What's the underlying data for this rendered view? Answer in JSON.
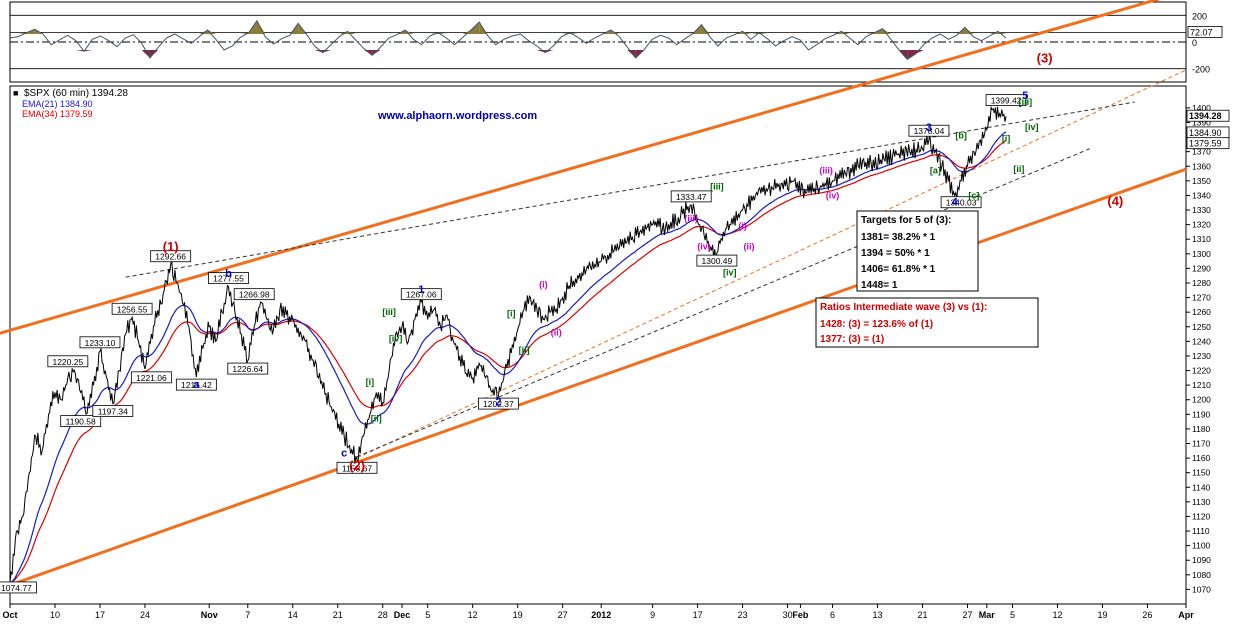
{
  "chart_data": [
    {
      "panel": "oscillator",
      "type": "area",
      "ylim": [
        -300,
        300
      ],
      "y_ticks": [
        200,
        0,
        -200
      ],
      "y_tick_labels": [
        "200",
        "0",
        "-200"
      ],
      "reference_lines": [
        72.07
      ],
      "value_label": "72.07",
      "shape_points": [
        30,
        40,
        70,
        95,
        60,
        -20,
        15,
        50,
        10,
        -70,
        20,
        45,
        10,
        -35,
        30,
        55,
        -10,
        -120,
        -40,
        30,
        60,
        25,
        -10,
        40,
        90,
        20,
        -60,
        -30,
        35,
        70,
        160,
        40,
        -15,
        25,
        50,
        140,
        60,
        -30,
        -80,
        -20,
        40,
        80,
        15,
        -50,
        -100,
        -40,
        30,
        55,
        90,
        20,
        -20,
        45,
        70,
        30,
        -20,
        35,
        90,
        150,
        50,
        -20,
        20,
        45,
        60,
        10,
        -30,
        -80,
        -30,
        40,
        70,
        35,
        -10,
        30,
        60,
        90,
        40,
        -40,
        -120,
        -60,
        20,
        50,
        30,
        -20,
        25,
        65,
        130,
        40,
        -30,
        30,
        55,
        80,
        20,
        70,
        25,
        -30,
        10,
        40,
        15,
        -60,
        -20,
        25,
        50,
        80,
        30,
        -20,
        40,
        70,
        100,
        20,
        -60,
        -130,
        -90,
        -20,
        30,
        60,
        20,
        50,
        110,
        40,
        10,
        45,
        80,
        30
      ]
    },
    {
      "panel": "price",
      "type": "line",
      "title": "$SPX (60 min) 1394.28",
      "watermark": "www.alphaorn.wordpress.com",
      "legend": [
        {
          "label": "EMA(21) 1384.90",
          "color": "#1a1acc"
        },
        {
          "label": "EMA(34) 1379.59",
          "color": "#e00000"
        }
      ],
      "ylim": [
        1060,
        1415
      ],
      "y_ticks": [
        1070,
        1080,
        1090,
        1100,
        1110,
        1120,
        1130,
        1140,
        1150,
        1160,
        1170,
        1180,
        1190,
        1200,
        1210,
        1220,
        1230,
        1240,
        1250,
        1260,
        1270,
        1280,
        1290,
        1300,
        1310,
        1320,
        1330,
        1340,
        1350,
        1360,
        1370,
        1380,
        1390,
        1400
      ],
      "last_price_labels": [
        "1394.28",
        "1384.90",
        "1379.59"
      ],
      "x_range_days": [
        0,
        183
      ],
      "x_ticks": [
        {
          "day": 0,
          "label": "Oct"
        },
        {
          "day": 7,
          "label": "10"
        },
        {
          "day": 14,
          "label": "17"
        },
        {
          "day": 21,
          "label": "24"
        },
        {
          "day": 31,
          "label": "Nov"
        },
        {
          "day": 37,
          "label": "7"
        },
        {
          "day": 44,
          "label": "14"
        },
        {
          "day": 51,
          "label": "21"
        },
        {
          "day": 58,
          "label": "28"
        },
        {
          "day": 61,
          "label": "Dec"
        },
        {
          "day": 65,
          "label": "5"
        },
        {
          "day": 72,
          "label": "12"
        },
        {
          "day": 79,
          "label": "19"
        },
        {
          "day": 86,
          "label": "27"
        },
        {
          "day": 92,
          "label": "2012"
        },
        {
          "day": 100,
          "label": "9"
        },
        {
          "day": 107,
          "label": "17"
        },
        {
          "day": 114,
          "label": "23"
        },
        {
          "day": 121,
          "label": "30"
        },
        {
          "day": 123,
          "label": "Feb"
        },
        {
          "day": 128,
          "label": "6"
        },
        {
          "day": 135,
          "label": "13"
        },
        {
          "day": 142,
          "label": "21"
        },
        {
          "day": 149,
          "label": "27"
        },
        {
          "day": 152,
          "label": "Mar"
        },
        {
          "day": 156,
          "label": "5"
        },
        {
          "day": 163,
          "label": "12"
        },
        {
          "day": 170,
          "label": "19"
        },
        {
          "day": 177,
          "label": "26"
        },
        {
          "day": 183,
          "label": "Apr"
        }
      ],
      "price_path": [
        [
          0,
          1074.77
        ],
        [
          1,
          1110
        ],
        [
          2,
          1120
        ],
        [
          3,
          1150
        ],
        [
          4,
          1175
        ],
        [
          5,
          1165
        ],
        [
          6,
          1190
        ],
        [
          7,
          1205
        ],
        [
          8,
          1200
        ],
        [
          9,
          1215
        ],
        [
          10,
          1220.25
        ],
        [
          11,
          1205
        ],
        [
          12,
          1190.58
        ],
        [
          13,
          1210
        ],
        [
          14,
          1233.1
        ],
        [
          15,
          1215
        ],
        [
          16,
          1197.34
        ],
        [
          17,
          1220
        ],
        [
          18,
          1245
        ],
        [
          19,
          1256.55
        ],
        [
          20,
          1240
        ],
        [
          21,
          1221.06
        ],
        [
          22,
          1245
        ],
        [
          24,
          1275
        ],
        [
          25,
          1292.66
        ],
        [
          26,
          1280
        ],
        [
          27,
          1265
        ],
        [
          28,
          1245
        ],
        [
          29,
          1215.42
        ],
        [
          30,
          1235
        ],
        [
          31,
          1250
        ],
        [
          32,
          1240
        ],
        [
          33,
          1260
        ],
        [
          34,
          1277.55
        ],
        [
          35,
          1260
        ],
        [
          36,
          1245
        ],
        [
          37,
          1226.64
        ],
        [
          38,
          1250
        ],
        [
          39,
          1266.98
        ],
        [
          40,
          1255
        ],
        [
          41,
          1248
        ],
        [
          42,
          1262
        ],
        [
          43,
          1258
        ],
        [
          44,
          1255
        ],
        [
          46,
          1240
        ],
        [
          48,
          1215
        ],
        [
          50,
          1195
        ],
        [
          52,
          1175
        ],
        [
          54,
          1158.67
        ],
        [
          55,
          1175
        ],
        [
          56,
          1190
        ],
        [
          57,
          1205
        ],
        [
          58,
          1198
        ],
        [
          59,
          1220
        ],
        [
          60,
          1245
        ],
        [
          61,
          1250
        ],
        [
          62,
          1240
        ],
        [
          63,
          1255
        ],
        [
          64,
          1267.06
        ],
        [
          65,
          1255
        ],
        [
          66,
          1262
        ],
        [
          67,
          1250
        ],
        [
          68,
          1258
        ],
        [
          69,
          1240
        ],
        [
          70,
          1230
        ],
        [
          71,
          1218
        ],
        [
          72,
          1215
        ],
        [
          73,
          1225
        ],
        [
          74,
          1215
        ],
        [
          75,
          1205
        ],
        [
          76,
          1202.37
        ],
        [
          77,
          1220
        ],
        [
          78,
          1232
        ],
        [
          79,
          1248
        ],
        [
          80,
          1262
        ],
        [
          81,
          1270
        ],
        [
          82,
          1262
        ],
        [
          83,
          1255
        ],
        [
          84,
          1260
        ],
        [
          85,
          1262
        ],
        [
          86,
          1270
        ],
        [
          87,
          1278
        ],
        [
          88,
          1283
        ],
        [
          90,
          1290
        ],
        [
          92,
          1295
        ],
        [
          94,
          1302
        ],
        [
          96,
          1308
        ],
        [
          98,
          1315
        ],
        [
          100,
          1320
        ],
        [
          102,
          1318
        ],
        [
          104,
          1325
        ],
        [
          106,
          1333.47
        ],
        [
          107,
          1322
        ],
        [
          108,
          1313
        ],
        [
          109,
          1305
        ],
        [
          110,
          1300.49
        ],
        [
          111,
          1315
        ],
        [
          112,
          1320
        ],
        [
          114,
          1330
        ],
        [
          116,
          1340
        ],
        [
          118,
          1345
        ],
        [
          120,
          1348
        ],
        [
          122,
          1350
        ],
        [
          124,
          1342
        ],
        [
          126,
          1345
        ],
        [
          128,
          1350
        ],
        [
          130,
          1355
        ],
        [
          132,
          1360
        ],
        [
          134,
          1362
        ],
        [
          136,
          1365
        ],
        [
          138,
          1368
        ],
        [
          140,
          1370
        ],
        [
          142,
          1372
        ],
        [
          143,
          1378.04
        ],
        [
          144,
          1370
        ],
        [
          145,
          1360
        ],
        [
          146,
          1350
        ],
        [
          147,
          1340.03
        ],
        [
          148,
          1350
        ],
        [
          149,
          1360
        ],
        [
          150,
          1370
        ],
        [
          151,
          1378
        ],
        [
          152,
          1385
        ],
        [
          153,
          1399.42
        ],
        [
          154,
          1396
        ],
        [
          155,
          1394.28
        ]
      ]
    }
  ],
  "markers": [
    {
      "text": "(1)",
      "day": 25,
      "price": 1302,
      "color": "#cc0000"
    },
    {
      "text": "(2)",
      "day": 54,
      "price": 1152,
      "color": "#cc0000"
    },
    {
      "text": "(3)",
      "day": 161,
      "price": 1431,
      "color": "#cc0000"
    },
    {
      "text": "(4)",
      "day": 172,
      "price": 1333,
      "color": "#cc0000"
    },
    {
      "text": "a",
      "day": 29,
      "price": 1208,
      "color": "#0000cc"
    },
    {
      "text": "b",
      "day": 34,
      "price": 1284,
      "color": "#0000cc"
    },
    {
      "text": "c",
      "day": 52,
      "price": 1161,
      "color": "#0000cc"
    },
    {
      "text": "1",
      "day": 64,
      "price": 1273,
      "color": "#0000cc"
    },
    {
      "text": "2",
      "day": 76,
      "price": 1196,
      "color": "#0000cc"
    },
    {
      "text": "3",
      "day": 143,
      "price": 1384,
      "color": "#0000cc"
    },
    {
      "text": "4",
      "day": 147,
      "price": 1333,
      "color": "#0000cc"
    },
    {
      "text": "5",
      "day": 158,
      "price": 1406,
      "color": "#0000cc"
    },
    {
      "text": "[i]",
      "day": 56,
      "price": 1210,
      "color": "#006600"
    },
    {
      "text": "[ii]",
      "day": 57,
      "price": 1185,
      "color": "#006600"
    },
    {
      "text": "[iii]",
      "day": 59,
      "price": 1258,
      "color": "#006600"
    },
    {
      "text": "[iv]",
      "day": 60,
      "price": 1240,
      "color": "#006600"
    },
    {
      "text": "[i]",
      "day": 78,
      "price": 1257,
      "color": "#006600"
    },
    {
      "text": "[ii]",
      "day": 80,
      "price": 1232,
      "color": "#006600"
    },
    {
      "text": "(i)",
      "day": 83,
      "price": 1277,
      "color": "#cc00cc"
    },
    {
      "text": "(ii)",
      "day": 85,
      "price": 1244,
      "color": "#cc00cc"
    },
    {
      "text": "(iii)",
      "day": 106,
      "price": 1322,
      "color": "#cc00cc"
    },
    {
      "text": "(iv)",
      "day": 108,
      "price": 1303,
      "color": "#cc00cc"
    },
    {
      "text": "[iii]",
      "day": 110,
      "price": 1344,
      "color": "#006600"
    },
    {
      "text": "[iv]",
      "day": 112,
      "price": 1285,
      "color": "#006600"
    },
    {
      "text": "(i)",
      "day": 114,
      "price": 1317,
      "color": "#cc00cc"
    },
    {
      "text": "(ii)",
      "day": 115,
      "price": 1303,
      "color": "#cc00cc"
    },
    {
      "text": "(iii)",
      "day": 127,
      "price": 1355,
      "color": "#cc00cc"
    },
    {
      "text": "(iv)",
      "day": 128,
      "price": 1338,
      "color": "#cc00cc"
    },
    {
      "text": "[a]",
      "day": 144,
      "price": 1355,
      "color": "#006600"
    },
    {
      "text": "[b]",
      "day": 148,
      "price": 1379,
      "color": "#006600"
    },
    {
      "text": "[c]",
      "day": 150,
      "price": 1338,
      "color": "#006600"
    },
    {
      "text": "[i]",
      "day": 155,
      "price": 1377,
      "color": "#006600"
    },
    {
      "text": "[ii]",
      "day": 157,
      "price": 1356,
      "color": "#006600"
    },
    {
      "text": "[iii]",
      "day": 158,
      "price": 1402,
      "color": "#006600"
    },
    {
      "text": "[iv]",
      "day": 159,
      "price": 1385,
      "color": "#006600"
    }
  ],
  "price_callouts": [
    {
      "text": "1074.77",
      "day": 1,
      "price": 1071
    },
    {
      "text": "1190.58",
      "day": 11,
      "price": 1185
    },
    {
      "text": "1220.25",
      "day": 9,
      "price": 1226
    },
    {
      "text": "1233.10",
      "day": 14,
      "price": 1239
    },
    {
      "text": "1197.34",
      "day": 16,
      "price": 1192
    },
    {
      "text": "1256.55",
      "day": 19,
      "price": 1262
    },
    {
      "text": "1221.06",
      "day": 22,
      "price": 1215
    },
    {
      "text": "1292.66",
      "day": 25,
      "price": 1298
    },
    {
      "text": "1215.42",
      "day": 29,
      "price": 1210
    },
    {
      "text": "1277.55",
      "day": 34,
      "price": 1283
    },
    {
      "text": "1266.98",
      "day": 38,
      "price": 1272
    },
    {
      "text": "1226.64",
      "day": 37,
      "price": 1221
    },
    {
      "text": "1158.67",
      "day": 54,
      "price": 1153
    },
    {
      "text": "1267.06",
      "day": 64,
      "price": 1272
    },
    {
      "text": "1202.37",
      "day": 76,
      "price": 1197
    },
    {
      "text": "1333.47",
      "day": 106,
      "price": 1339
    },
    {
      "text": "1300.49",
      "day": 110,
      "price": 1295
    },
    {
      "text": "1378.04",
      "day": 143,
      "price": 1384
    },
    {
      "text": "1340.03",
      "day": 148,
      "price": 1335
    },
    {
      "text": "1399.42",
      "day": 155,
      "price": 1405
    }
  ],
  "targets_box": {
    "title": "Targets for 5 of (3):",
    "lines": [
      "1381= 38.2% * 1",
      "1394 = 50% * 1",
      "1406= 61.8% * 1",
      "1448= 1"
    ]
  },
  "ratios_box": {
    "title": "Ratios Intermediate wave (3) vs (1):",
    "lines": [
      "1428: (3) = 123.6% of (1)",
      "1377: (3) = (1)"
    ]
  },
  "channel_lines": [
    {
      "style": "orange-solid",
      "from": [
        -2,
        1245
      ],
      "to": [
        183,
        1480
      ]
    },
    {
      "style": "orange-solid",
      "from": [
        0,
        1073
      ],
      "to": [
        183,
        1358
      ]
    },
    {
      "style": "orange-dashed",
      "from": [
        54,
        1160
      ],
      "to": [
        183,
        1426
      ]
    },
    {
      "style": "black-dashed",
      "from": [
        18,
        1284
      ],
      "to": [
        175,
        1404
      ]
    },
    {
      "style": "black-dashed",
      "from": [
        54,
        1161
      ],
      "to": [
        168,
        1372
      ]
    }
  ],
  "colors": {
    "ema21": "#1a1acc",
    "ema34": "#e00000",
    "channel": "#f07020",
    "price": "#000000",
    "osc_fill": "#8b7c3a",
    "osc_neg_fill": "#7a2a4a"
  }
}
